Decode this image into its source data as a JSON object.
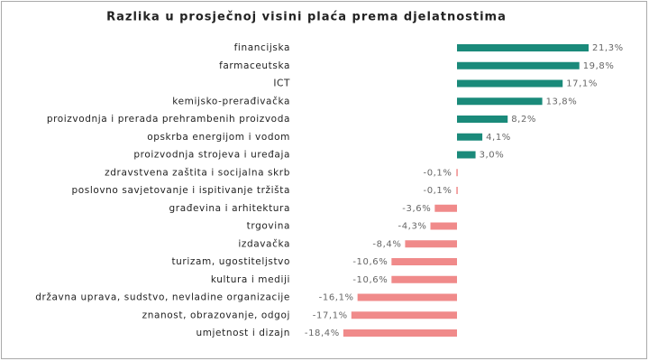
{
  "chart_data": {
    "type": "bar",
    "orientation": "horizontal",
    "title": "Razlika u prosječnoj visini plaća prema djelatnostima",
    "categories": [
      "financijska",
      "farmaceutska",
      "ICT",
      "kemijsko-prerađivačka",
      "proizvodnja i prerada prehrambenih proizvoda",
      "opskrba energijom i vodom",
      "proizvodnja strojeva i uređaja",
      "zdravstvena zaštita i socijalna skrb",
      "poslovno savjetovanje i ispitivanje tržišta",
      "građevina i arhitektura",
      "trgovina",
      "izdavačka",
      "turizam, ugostiteljstvo",
      "kultura i mediji",
      "državna uprava, sudstvo, nevladine organizacije",
      "znanost, obrazovanje, odgoj",
      "umjetnost i dizajn"
    ],
    "values": [
      21.3,
      19.8,
      17.1,
      13.8,
      8.2,
      4.1,
      3.0,
      -0.1,
      -0.1,
      -3.6,
      -4.3,
      -8.4,
      -10.6,
      -10.6,
      -16.1,
      -17.1,
      -18.4
    ],
    "value_labels": [
      "21,3%",
      "19,8%",
      "17,1%",
      "13,8%",
      "8,2%",
      "4,1%",
      "3,0%",
      "-0,1%",
      "-0,1%",
      "-3,6%",
      "-4,3%",
      "-8,4%",
      "-10,6%",
      "-10,6%",
      "-16,1%",
      "-17,1%",
      "-18,4%"
    ],
    "positive_color": "#1a8a7a",
    "negative_color": "#f08a8a"
  }
}
